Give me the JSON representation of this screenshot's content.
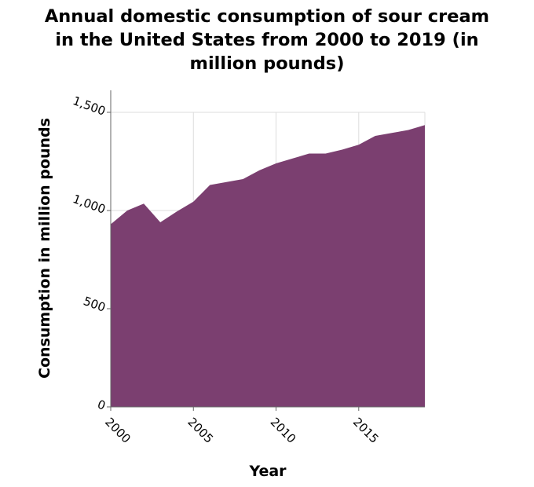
{
  "title_lines": [
    "Annual domestic consumption of sour cream",
    "in the United States from 2000 to 2019 (in",
    "million pounds)"
  ],
  "chart_data": {
    "type": "area",
    "title": "Annual domestic consumption of sour cream in the United States from 2000 to 2019 (in million pounds)",
    "xlabel": "Year",
    "ylabel": "Consumption in million pounds",
    "x": [
      2000,
      2001,
      2002,
      2003,
      2004,
      2005,
      2006,
      2007,
      2008,
      2009,
      2010,
      2011,
      2012,
      2013,
      2014,
      2015,
      2016,
      2017,
      2018,
      2019
    ],
    "series": [
      {
        "values": [
          930,
          1000,
          1035,
          940,
          995,
          1045,
          1130,
          1145,
          1160,
          1205,
          1240,
          1265,
          1290,
          1290,
          1310,
          1335,
          1380,
          1395,
          1410,
          1435
        ]
      }
    ],
    "xlim": [
      2000,
      2019
    ],
    "ylim": [
      0,
      1500
    ],
    "xticks": [
      2000,
      2005,
      2010,
      2015
    ],
    "xtick_labels": [
      "2000",
      "2005",
      "2010",
      "2015"
    ],
    "yticks": [
      0,
      500,
      1000,
      1500
    ],
    "ytick_labels": [
      "0",
      "500",
      "1,000",
      "1,500"
    ],
    "grid": true,
    "fill_color": "#7b3f70",
    "grid_color": "#dddddd",
    "axis_color": "#666666"
  }
}
